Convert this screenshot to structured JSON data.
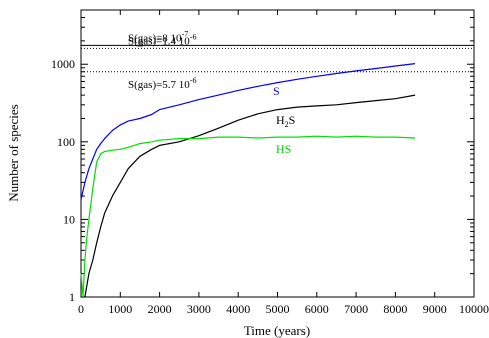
{
  "chart_data": {
    "type": "line",
    "xlabel": "Time (years)",
    "ylabel": "Number of species",
    "xlim": [
      0,
      10000
    ],
    "ylim": [
      1,
      5000
    ],
    "yscale": "log",
    "grid": false,
    "legend": "none",
    "x_ticks": [
      "0",
      "1000",
      "2000",
      "3000",
      "4000",
      "5000",
      "6000",
      "7000",
      "8000",
      "9000",
      "10000"
    ],
    "y_ticks": [
      "1",
      "10",
      "100",
      "1000"
    ],
    "series": [
      {
        "name": "S",
        "color": "#0000ff",
        "x": [
          0,
          100,
          200,
          300,
          400,
          500,
          600,
          800,
          1000,
          1200,
          1500,
          1800,
          2000,
          2500,
          3000,
          3500,
          4000,
          4500,
          5000,
          5500,
          6000,
          6500,
          7000,
          7500,
          8000,
          8500
        ],
        "y": [
          18,
          30,
          45,
          60,
          80,
          95,
          110,
          140,
          165,
          185,
          200,
          225,
          260,
          300,
          350,
          400,
          460,
          520,
          580,
          640,
          700,
          760,
          820,
          880,
          950,
          1020
        ]
      },
      {
        "name": "H2S",
        "color": "#000000",
        "x": [
          0,
          100,
          200,
          300,
          400,
          500,
          600,
          800,
          1000,
          1200,
          1500,
          1800,
          2000,
          2500,
          3000,
          3500,
          4000,
          4500,
          5000,
          5500,
          6000,
          6500,
          7000,
          7500,
          8000,
          8500
        ],
        "y": [
          1,
          1,
          2,
          3,
          5,
          8,
          12,
          20,
          30,
          45,
          65,
          80,
          90,
          100,
          120,
          150,
          190,
          230,
          260,
          280,
          290,
          300,
          320,
          340,
          360,
          400
        ]
      },
      {
        "name": "HS",
        "color": "#00e000",
        "x": [
          0,
          50,
          100,
          150,
          200,
          300,
          400,
          500,
          600,
          800,
          1000,
          1200,
          1500,
          1800,
          2000,
          2500,
          3000,
          3500,
          4000,
          4500,
          5000,
          5500,
          6000,
          6500,
          7000,
          7500,
          8000,
          8500
        ],
        "y": [
          2,
          1,
          3,
          6,
          10,
          25,
          55,
          70,
          75,
          78,
          80,
          85,
          95,
          100,
          105,
          110,
          110,
          115,
          115,
          112,
          115,
          115,
          118,
          115,
          118,
          115,
          115,
          112
        ]
      }
    ],
    "reference_lines": [
      {
        "y": 1750,
        "label": "S(gas)=8 10",
        "exp": "-7",
        "style": "solid"
      },
      {
        "y": 1600,
        "label": "S(gas)=1.4 10",
        "exp": "-6",
        "style": "dotted"
      },
      {
        "y": 800,
        "label": "S(gas)=5.7 10",
        "exp": "-6",
        "style": "dotted"
      }
    ],
    "annotations": {
      "S": "S",
      "H2S_main": "H",
      "H2S_sub": "2",
      "H2S_tail": "S",
      "HS": "HS"
    }
  }
}
